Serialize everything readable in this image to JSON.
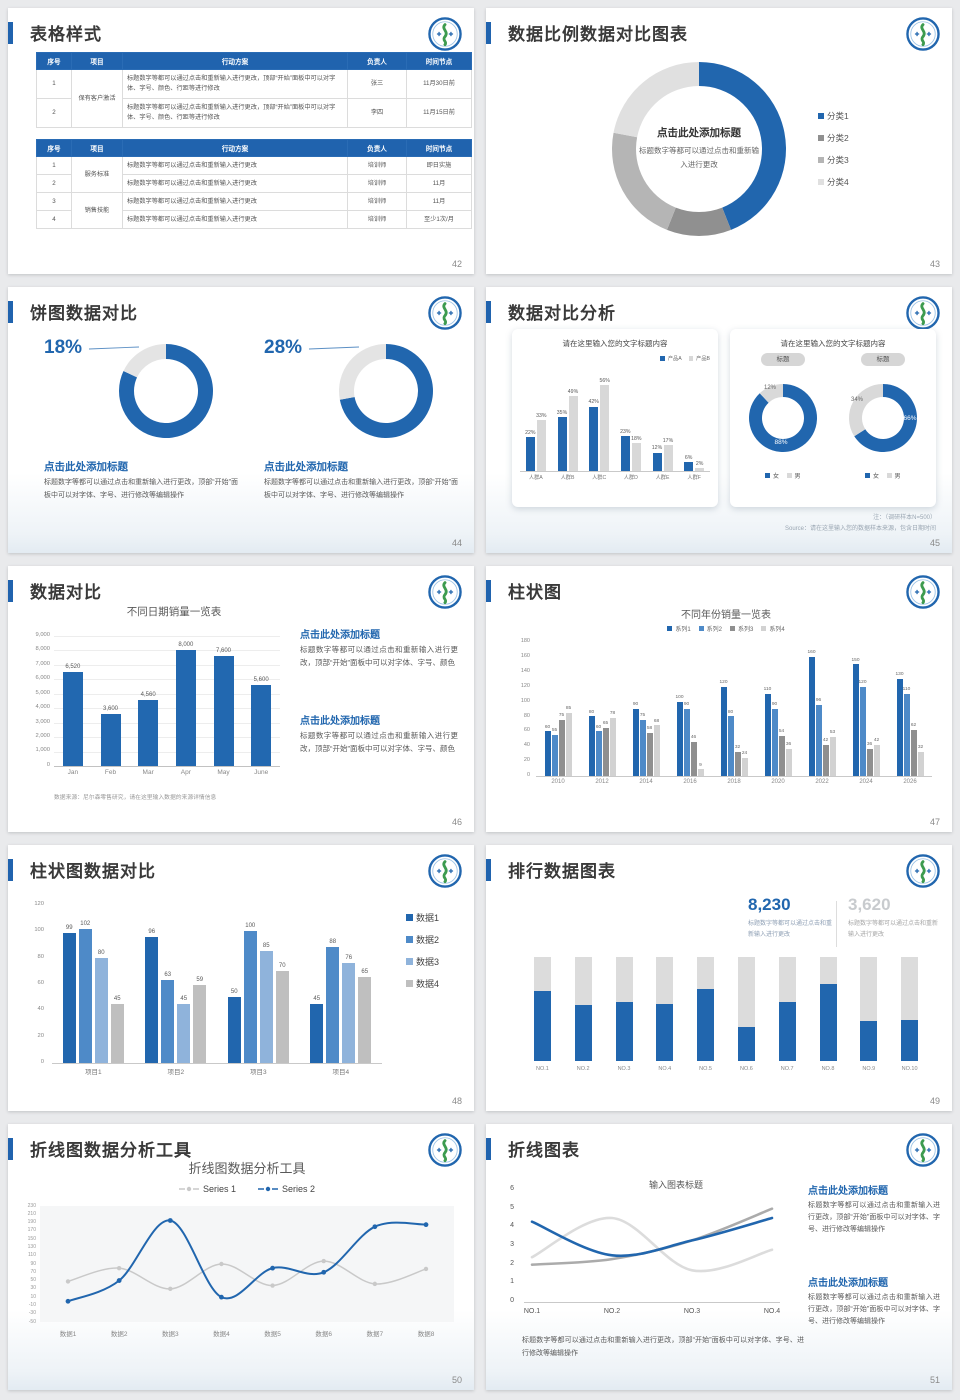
{
  "colors": {
    "primary": "#2166AE",
    "accent_bar": "#2063AE",
    "table_header": "#2063AE",
    "gray_light": "#D2D2D2",
    "gray_mid": "#9E9E9E"
  },
  "slides": {
    "s42": {
      "title": "表格样式",
      "page": "42",
      "table1": {
        "headers": [
          "序号",
          "项目",
          "行动方案",
          "负责人",
          "时间节点"
        ],
        "rows": [
          [
            {
              "t": "1"
            },
            {
              "t": "保有客户激活",
              "rs": 2
            },
            {
              "t": "标题数字等都可以通过点击和重新输入进行更改，顶部“开始”面板中可以对字体、字号、颜色、行距等进行修改",
              "left": true
            },
            {
              "t": "张三"
            },
            {
              "t": "11月30日前"
            }
          ],
          [
            {
              "t": "2"
            },
            {
              "t": "标题数字等都可以通过点击和重新输入进行更改，顶部“开始”面板中可以对字体、字号、颜色、行距等进行修改",
              "left": true
            },
            {
              "t": "李四"
            },
            {
              "t": "11月15日前"
            }
          ]
        ]
      },
      "table2": {
        "headers": [
          "序号",
          "项目",
          "行动方案",
          "负责人",
          "时间节点"
        ],
        "rows": [
          [
            {
              "t": "1"
            },
            {
              "t": "服务标准",
              "rs": 2
            },
            {
              "t": "标题数字等都可以通过点击和重新输入进行更改",
              "left": true
            },
            {
              "t": "培训师"
            },
            {
              "t": "即日实施"
            }
          ],
          [
            {
              "t": "2"
            },
            {
              "t": "标题数字等都可以通过点击和重新输入进行更改",
              "left": true
            },
            {
              "t": "培训师"
            },
            {
              "t": "11月"
            }
          ],
          [
            {
              "t": "3"
            },
            {
              "t": "销售技能",
              "rs": 2
            },
            {
              "t": "标题数字等都可以通过点击和重新输入进行更改",
              "left": true
            },
            {
              "t": "培训师"
            },
            {
              "t": "11月"
            }
          ],
          [
            {
              "t": "4"
            },
            {
              "t": "标题数字等都可以通过点击和重新输入进行更改",
              "left": true
            },
            {
              "t": "培训师"
            },
            {
              "t": "至少1次/月"
            }
          ]
        ]
      }
    },
    "s43": {
      "title": "数据比例数据对比图表",
      "page": "43",
      "center_title": "点击此处添加标题",
      "center_text": "标题数字等都可以通过点击和重新输入进行更改",
      "chart_data": {
        "type": "pie",
        "labels": [
          "分类1",
          "分类2",
          "分类3",
          "分类4"
        ],
        "values": [
          44,
          12,
          22,
          22
        ],
        "colors": [
          "#2166AE",
          "#909090",
          "#B5B5B5",
          "#E0E0E0"
        ],
        "legend_position": "right"
      }
    },
    "s44": {
      "title": "饼图数据对比",
      "page": "44",
      "groups": [
        {
          "pct": "18%",
          "heading": "点击此处添加标题",
          "body": "标题数字等都可以通过点击和重新输入进行更改，顶部“开始”面板中可以对字体、字号、进行修改等编辑操作"
        },
        {
          "pct": "28%",
          "heading": "点击此处添加标题",
          "body": "标题数字等都可以通过点击和重新输入进行更改，顶部“开始”面板中可以对字体、字号、进行修改等编辑操作"
        }
      ],
      "chart_data": [
        {
          "type": "pie",
          "values": [
            82,
            18
          ],
          "colors": [
            "#2166AE",
            "#E4E4E4"
          ]
        },
        {
          "type": "pie",
          "values": [
            72,
            28
          ],
          "colors": [
            "#2166AE",
            "#E4E4E4"
          ]
        }
      ]
    },
    "s45": {
      "title": "数据对比分析",
      "page": "45",
      "card1": {
        "title": "请在这里输入您的文字标题内容",
        "chart_data": {
          "type": "bar",
          "categories": [
            "人群A",
            "人群B",
            "人群C",
            "人群D",
            "人群E",
            "人群F"
          ],
          "series": [
            {
              "name": "产品A",
              "color": "#2166AE",
              "values": [
                22,
                35,
                42,
                23,
                12,
                6
              ]
            },
            {
              "name": "产品B",
              "color": "#D8D8D8",
              "values": [
                33,
                49,
                56,
                18,
                17,
                2
              ]
            }
          ],
          "unit": "%",
          "ymax": 60
        }
      },
      "card2": {
        "title": "请在这里输入您的文字标题内容",
        "badge": "标题",
        "legend": [
          "女",
          "男"
        ],
        "legend_colors": [
          "#2166AE",
          "#D9D9D9"
        ],
        "chart_data": [
          {
            "type": "pie",
            "labels": [
              "女",
              "男"
            ],
            "values": [
              88,
              12
            ],
            "colors": [
              "#2166AE",
              "#D9D9D9"
            ],
            "value_labels": [
              "88%",
              "12%"
            ]
          },
          {
            "type": "pie",
            "labels": [
              "女",
              "男"
            ],
            "values": [
              66,
              34
            ],
            "colors": [
              "#2166AE",
              "#D9D9D9"
            ],
            "value_labels": [
              "66%",
              "34%"
            ]
          }
        ]
      },
      "note1": "注：（调研样本N=500）",
      "note2": "Source：请在这里输入您的数据样本来源，包含日期时间"
    },
    "s46": {
      "title": "数据对比",
      "page": "46",
      "chart_title": "不同日期销量一览表",
      "chart_data": {
        "type": "bar",
        "categories": [
          "Jan",
          "Feb",
          "Mar",
          "Apr",
          "May",
          "June"
        ],
        "values": [
          6520,
          3600,
          4560,
          8000,
          7600,
          5600
        ],
        "value_labels": [
          "6,520",
          "3,600",
          "4,560",
          "8,000",
          "7,600",
          "5,600"
        ],
        "ymax": 9000,
        "yticks": [
          "9,000",
          "8,000",
          "7,000",
          "6,000",
          "5,000",
          "4,000",
          "3,000",
          "2,000",
          "1,000",
          "0"
        ],
        "grid": true
      },
      "source": "数据来源：尼尔森零售研究，请在这里输入数据的来源详情信息",
      "blocks": [
        {
          "heading": "点击此处添加标题",
          "body": "标题数字等都可以通过点击和重新输入进行更改，顶部“开始”面板中可以对字体、字号、颜色"
        },
        {
          "heading": "点击此处添加标题",
          "body": "标题数字等都可以通过点击和重新输入进行更改，顶部“开始”面板中可以对字体、字号、颜色"
        }
      ]
    },
    "s47": {
      "title": "柱状图",
      "page": "47",
      "chart_title": "不同年份销量一览表",
      "chart_data": {
        "type": "bar",
        "categories": [
          "2010",
          "2012",
          "2014",
          "2016",
          "2018",
          "2020",
          "2022",
          "2024",
          "2026"
        ],
        "series": [
          {
            "name": "系列1",
            "color": "#2166AE",
            "values": [
              60,
              80,
              90,
              100,
              120,
              110,
              160,
              150,
              130
            ]
          },
          {
            "name": "系列2",
            "color": "#4E8AC8",
            "values": [
              55,
              60,
              75,
              90,
              80,
              90,
              96,
              120,
              110
            ]
          },
          {
            "name": "系列3",
            "color": "#8F8F8F",
            "values": [
              75,
              65,
              58,
              46,
              32,
              54,
              42,
              36,
              62
            ]
          },
          {
            "name": "系列4",
            "color": "#D2D2D2",
            "values": [
              85,
              78,
              68,
              9,
              24,
              36,
              53,
              42,
              32
            ]
          }
        ],
        "ymax": 180,
        "yticks": [
          "180",
          "160",
          "140",
          "120",
          "100",
          "80",
          "60",
          "40",
          "20",
          "0"
        ],
        "legend_position": "top"
      }
    },
    "s48": {
      "title": "柱状图数据对比",
      "page": "48",
      "chart_data": {
        "type": "bar",
        "categories": [
          "项目1",
          "项目2",
          "项目3",
          "项目4"
        ],
        "series": [
          {
            "name": "数据1",
            "color": "#2166AE",
            "values": [
              99,
              96,
              50,
              45
            ]
          },
          {
            "name": "数据2",
            "color": "#4E8AC8",
            "values": [
              102,
              63,
              100,
              88
            ]
          },
          {
            "name": "数据3",
            "color": "#8FB3DB",
            "values": [
              80,
              45,
              85,
              76
            ]
          },
          {
            "name": "数据4",
            "color": "#BFBFBF",
            "values": [
              45,
              59,
              70,
              65
            ]
          }
        ],
        "ymax": 120,
        "yticks": [
          "120",
          "100",
          "80",
          "60",
          "40",
          "20",
          "0"
        ],
        "legend_position": "right"
      }
    },
    "s49": {
      "title": "排行数据图表",
      "page": "49",
      "stats": [
        {
          "value": "8,230",
          "text": "标题数字等都可以通过点击和重新输入进行更改"
        },
        {
          "value": "3,620",
          "text": "标题数字等都可以通过点击和重新输入进行更改"
        }
      ],
      "chart_data": {
        "type": "bar",
        "categories": [
          "NO.1",
          "NO.2",
          "NO.3",
          "NO.4",
          "NO.5",
          "NO.6",
          "NO.7",
          "NO.8",
          "NO.9",
          "NO.10"
        ],
        "blue_fraction": [
          0.67,
          0.54,
          0.57,
          0.55,
          0.69,
          0.33,
          0.57,
          0.74,
          0.38,
          0.39
        ],
        "bar_colors": {
          "filled": "#2166AE",
          "rest": "#DCDCDC"
        }
      }
    },
    "s50": {
      "title": "折线图数据分析工具",
      "page": "50",
      "chart_title": "折线图数据分析工具",
      "chart_data": {
        "type": "line",
        "categories": [
          "数据1",
          "数据2",
          "数据3",
          "数据4",
          "数据5",
          "数据6",
          "数据7",
          "数据8"
        ],
        "series": [
          {
            "name": "Series 1",
            "color": "#C9C9C9",
            "values": [
              48,
              80,
              30,
              90,
              38,
              97,
              42,
              78
            ]
          },
          {
            "name": "Series 2",
            "color": "#2166AE",
            "values": [
              0,
              50,
              195,
              10,
              80,
              70,
              180,
              185
            ]
          }
        ],
        "ymin": -50,
        "ymax": 230,
        "ytick_step": 20,
        "legend_position": "top"
      }
    },
    "s51": {
      "title": "折线图表",
      "page": "51",
      "chart_title": "输入图表标题",
      "chart_data": {
        "type": "line",
        "categories": [
          "NO.1",
          "NO.2",
          "NO.3",
          "NO.4"
        ],
        "series": [
          {
            "color": "#2166AE",
            "values": [
              4.3,
              2.5,
              3.3,
              4.5
            ]
          },
          {
            "color": "#DCDCDC",
            "values": [
              2.4,
              4.5,
              1.7,
              2.8
            ]
          },
          {
            "color": "#ABABAB",
            "values": [
              2.0,
              2.3,
              3.3,
              5.0
            ]
          }
        ],
        "ymin": 0,
        "ymax": 6,
        "yticks": [
          "6",
          "5",
          "4",
          "3",
          "2",
          "1",
          "0"
        ]
      },
      "note": "标题数字等都可以通过点击和重新输入进行更改，顶部“开始”面板中可以对字体、字号、进行修改等编辑操作",
      "blocks": [
        {
          "heading": "点击此处添加标题",
          "body": "标题数字等都可以通过点击和重新输入进行更改，顶部“开始”面板中可以对字体、字号、进行修改等编辑操作"
        },
        {
          "heading": "点击此处添加标题",
          "body": "标题数字等都可以通过点击和重新输入进行更改，顶部“开始”面板中可以对字体、字号、进行修改等编辑操作"
        }
      ]
    }
  }
}
